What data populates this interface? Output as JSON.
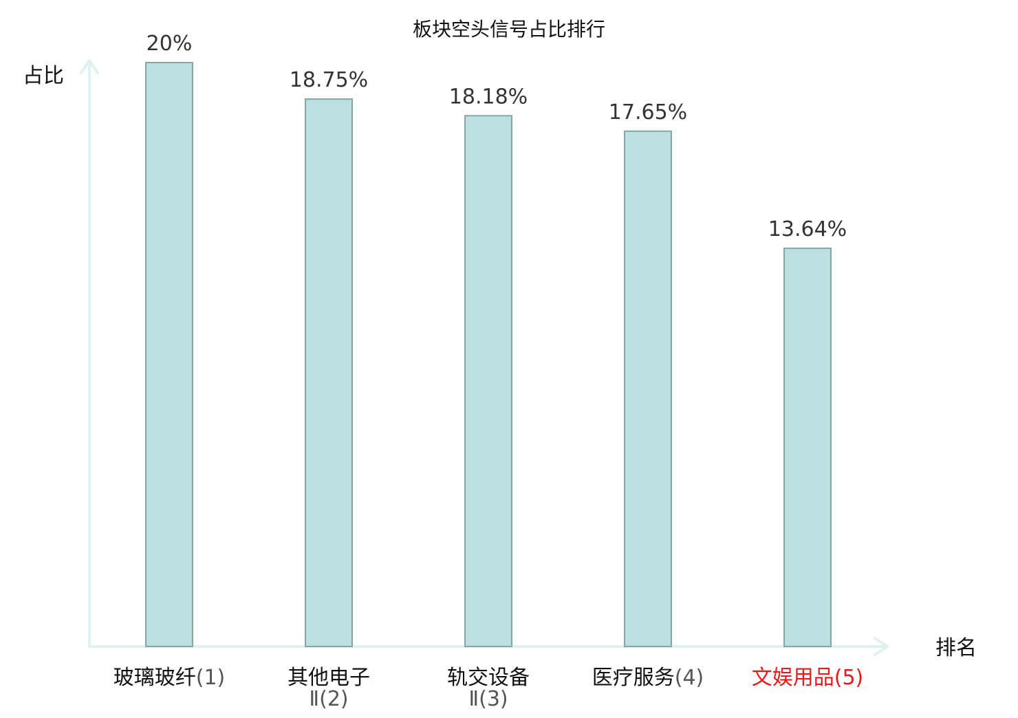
{
  "chart_data": {
    "type": "bar",
    "title": "板块空头信号占比排行",
    "xlabel": "排名",
    "ylabel": "占比",
    "categories": [
      {
        "line1": "玻璃玻纤",
        "line2": "",
        "rank": "(1)",
        "highlight": false
      },
      {
        "line1": "其他电子",
        "line2": "Ⅱ",
        "rank": "(2)",
        "highlight": false
      },
      {
        "line1": "轨交设备",
        "line2": "Ⅱ",
        "rank": "(3)",
        "highlight": false
      },
      {
        "line1": "医疗服务",
        "line2": "",
        "rank": "(4)",
        "highlight": false
      },
      {
        "line1": "文娱用品",
        "line2": "",
        "rank": "(5)",
        "highlight": true
      }
    ],
    "values": [
      20,
      18.75,
      18.18,
      17.65,
      13.64
    ],
    "value_labels": [
      "20%",
      "18.75%",
      "18.18%",
      "17.65%",
      "13.64%"
    ],
    "ylim": [
      0,
      20
    ],
    "grid": false,
    "legend": "none"
  },
  "colors": {
    "bar_fill": "#bce0e1",
    "bar_stroke": "#86a5a5",
    "axis": "#dff2ef",
    "text": "#111111",
    "value_text": "#333333",
    "rank_text": "#555555",
    "highlight": "#e8191a"
  }
}
